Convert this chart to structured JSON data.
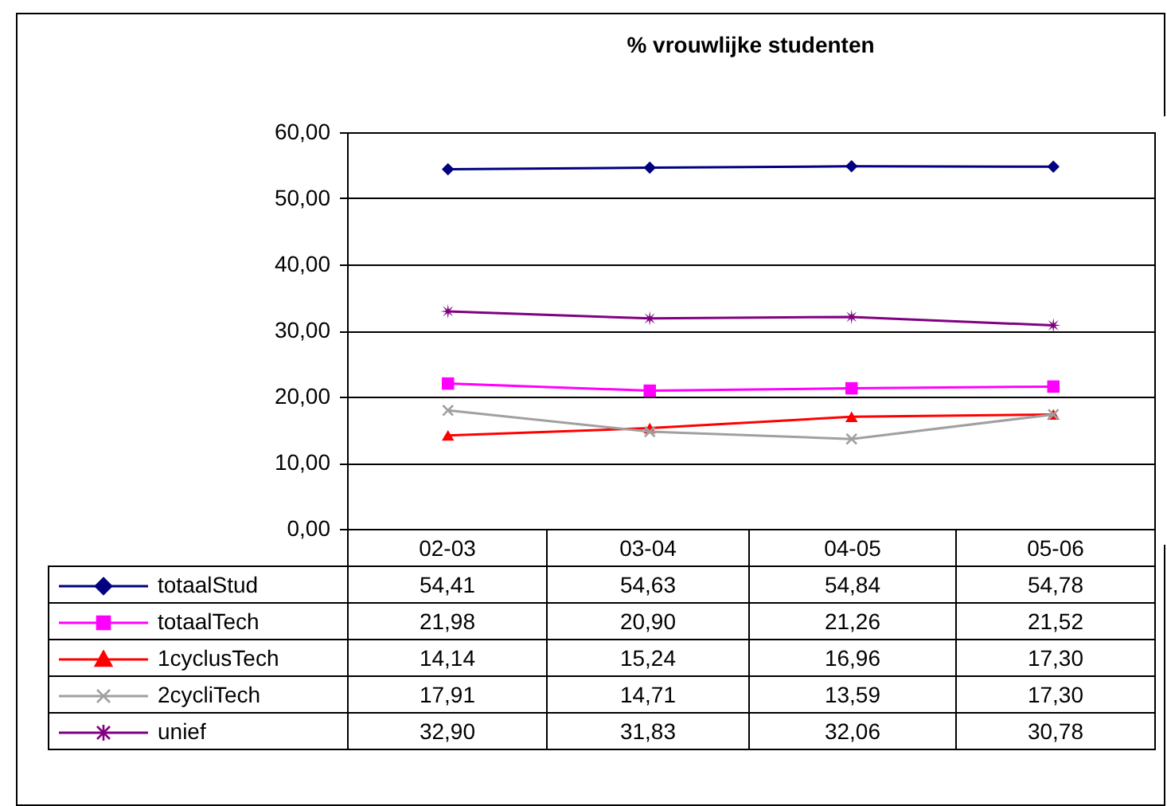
{
  "chart_data": {
    "type": "line",
    "title": "% vrouwlijke studenten",
    "categories": [
      "02-03",
      "03-04",
      "04-05",
      "05-06"
    ],
    "series": [
      {
        "name": "totaalStud",
        "color": "#000080",
        "marker": "diamond",
        "values": [
          54.41,
          54.63,
          54.84,
          54.78
        ],
        "value_labels": [
          "54,41",
          "54,63",
          "54,84",
          "54,78"
        ]
      },
      {
        "name": "totaalTech",
        "color": "#ff00ff",
        "marker": "square",
        "values": [
          21.98,
          20.9,
          21.26,
          21.52
        ],
        "value_labels": [
          "21,98",
          "20,90",
          "21,26",
          "21,52"
        ]
      },
      {
        "name": "1cyclusTech",
        "color": "#ff0000",
        "marker": "triangle",
        "values": [
          14.14,
          15.24,
          16.96,
          17.3
        ],
        "value_labels": [
          "14,14",
          "15,24",
          "16,96",
          "17,30"
        ]
      },
      {
        "name": "2cycliTech",
        "color": "#a0a0a0",
        "marker": "cross",
        "values": [
          17.91,
          14.71,
          13.59,
          17.3
        ],
        "value_labels": [
          "17,91",
          "14,71",
          "13,59",
          "17,30"
        ]
      },
      {
        "name": "unief",
        "color": "#800080",
        "marker": "star",
        "values": [
          32.9,
          31.83,
          32.06,
          30.78
        ],
        "value_labels": [
          "32,90",
          "31,83",
          "32,06",
          "30,78"
        ]
      }
    ],
    "ylim": [
      0,
      60
    ],
    "yticks": [
      {
        "value": 0,
        "label": "0,00"
      },
      {
        "value": 10,
        "label": "10,00"
      },
      {
        "value": 20,
        "label": "20,00"
      },
      {
        "value": 30,
        "label": "30,00"
      },
      {
        "value": 40,
        "label": "40,00"
      },
      {
        "value": 50,
        "label": "50,00"
      },
      {
        "value": 60,
        "label": "60,00"
      }
    ],
    "grid": "y",
    "legend": "bottom"
  }
}
